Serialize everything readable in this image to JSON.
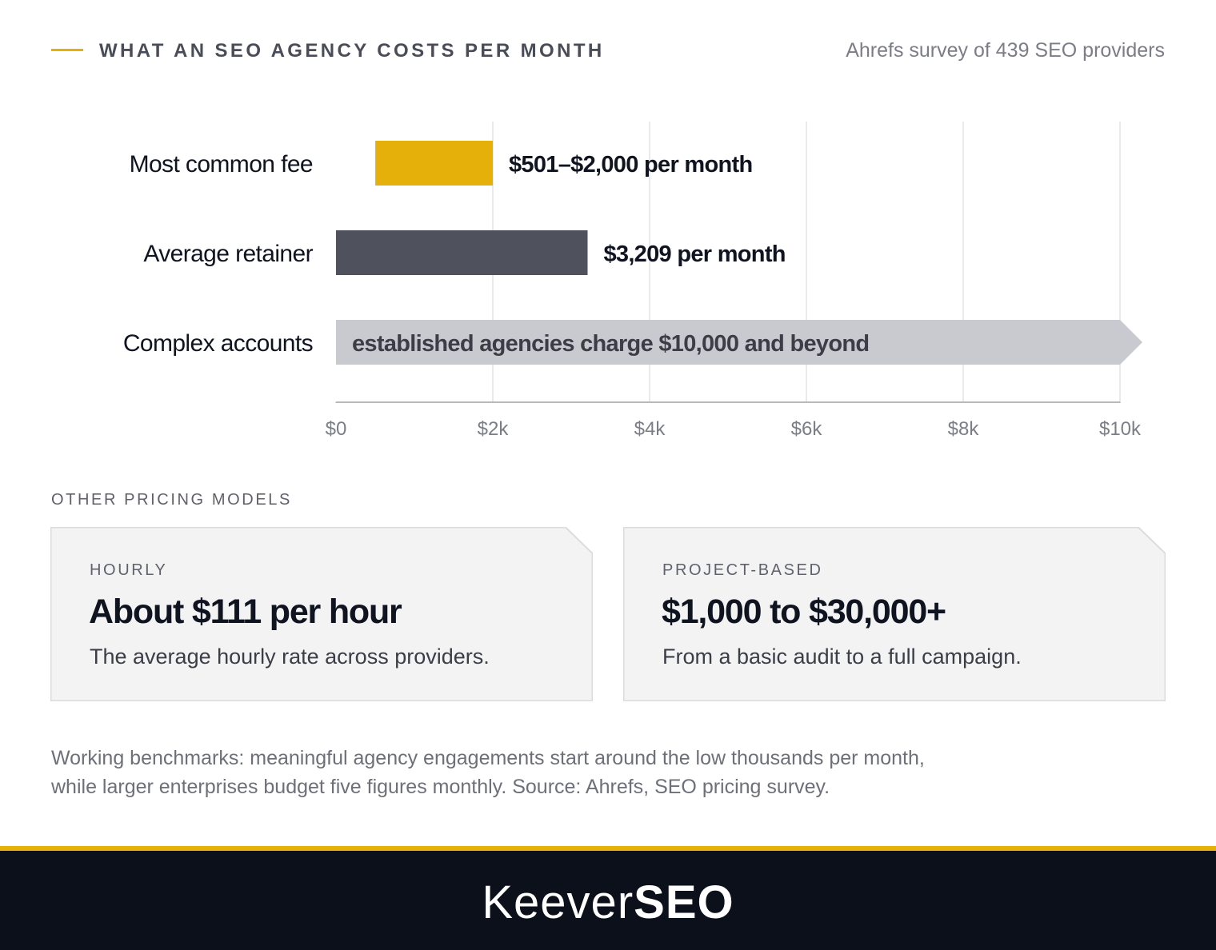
{
  "header": {
    "title": "WHAT AN SEO AGENCY COSTS PER MONTH",
    "source": "Ahrefs survey of 439 SEO providers"
  },
  "colors": {
    "accent": "#e6b00a",
    "dark_bar": "#4f525c",
    "light_bar": "#c9cacf",
    "footer_bg": "#0b101b"
  },
  "chart_data": {
    "type": "bar",
    "orientation": "horizontal",
    "xlim": [
      0,
      10000
    ],
    "grid": true,
    "ticks": [
      {
        "value": 0,
        "label": "$0"
      },
      {
        "value": 2000,
        "label": "$2k"
      },
      {
        "value": 4000,
        "label": "$4k"
      },
      {
        "value": 6000,
        "label": "$6k"
      },
      {
        "value": 8000,
        "label": "$8k"
      },
      {
        "value": 10000,
        "label": "$10k"
      }
    ],
    "bars": [
      {
        "category": "Most common fee",
        "start": 501,
        "end": 2000,
        "label": "$501–$2,000 per month",
        "color": "#e6b00a",
        "label_position": "outside"
      },
      {
        "category": "Average retainer",
        "start": 0,
        "end": 3209,
        "label": "$3,209 per month",
        "color": "#4f525c",
        "label_position": "outside"
      },
      {
        "category": "Complex accounts",
        "start": 0,
        "end": 10000,
        "open_ended": true,
        "label": "established agencies charge $10,000 and beyond",
        "color": "#c9cacf",
        "label_position": "inside"
      }
    ]
  },
  "other_models": {
    "label": "OTHER PRICING MODELS",
    "cards": [
      {
        "eyebrow": "HOURLY",
        "value": "About $111 per hour",
        "desc": "The average hourly rate across providers."
      },
      {
        "eyebrow": "PROJECT-BASED",
        "value": "$1,000 to $30,000+",
        "desc": "From a basic audit to a full campaign."
      }
    ]
  },
  "footnote": {
    "line1": "Working benchmarks: meaningful agency engagements start around the low thousands per month,",
    "line2": "while larger enterprises budget five figures monthly. Source: Ahrefs, SEO pricing survey."
  },
  "footer": {
    "logo_light": "Keever",
    "logo_bold": "SEO"
  }
}
